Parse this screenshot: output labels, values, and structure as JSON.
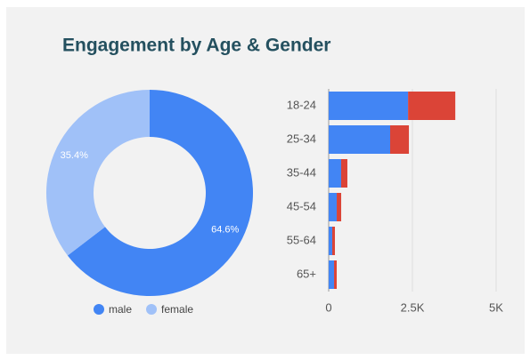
{
  "title": "Engagement by Age & Gender",
  "chart_data": [
    {
      "type": "pie",
      "donut": true,
      "categories": [
        "male",
        "female"
      ],
      "values": [
        64.6,
        35.4
      ],
      "value_labels": [
        "64.6%",
        "35.4%"
      ],
      "colors": [
        "#4285f4",
        "#a0c1f8"
      ]
    },
    {
      "type": "bar",
      "orientation": "horizontal",
      "stacked": true,
      "categories": [
        "18-24",
        "25-34",
        "35-44",
        "45-54",
        "55-64",
        "65+"
      ],
      "series": [
        {
          "color": "#4285f4",
          "values": [
            2370,
            1835,
            372,
            240,
            106,
            160
          ]
        },
        {
          "color": "#db4437",
          "values": [
            1410,
            560,
            186,
            133,
            80,
            80
          ]
        }
      ],
      "xlim": [
        0,
        5000
      ],
      "xticks": [
        0,
        {
          "value": 2500,
          "label": "2.5K"
        },
        {
          "value": 5000,
          "label": "5K"
        }
      ],
      "grid": true
    }
  ]
}
